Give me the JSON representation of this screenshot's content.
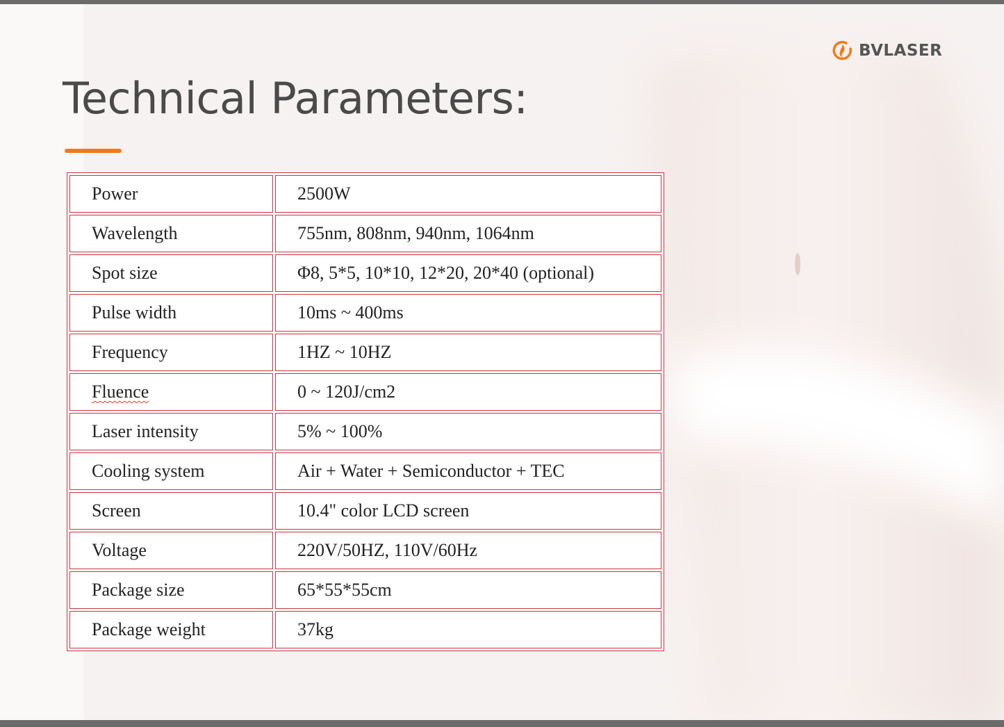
{
  "logo": "BVLASER",
  "title": "Technical Parameters:",
  "table": {
    "rows": [
      [
        "Power",
        "2500W"
      ],
      [
        "Wavelength",
        "755nm, 808nm, 940nm, 1064nm"
      ],
      [
        "Spot size",
        "Φ8, 5*5, 10*10, 12*20, 20*40 (optional)"
      ],
      [
        "Pulse width",
        "10ms ~ 400ms"
      ],
      [
        "Frequency",
        "1HZ ~ 10HZ"
      ],
      [
        "Fluence",
        "0 ~ 120J/cm2"
      ],
      [
        "Laser intensity",
        "5% ~ 100%"
      ],
      [
        "Cooling system",
        "Air + Water + Semiconductor + TEC"
      ],
      [
        "Screen",
        "10.4\" color LCD screen"
      ],
      [
        "Voltage",
        "220V/50HZ, 110V/60Hz"
      ],
      [
        "Package size",
        "65*55*55cm"
      ],
      [
        "Package weight",
        "37kg"
      ]
    ]
  }
}
